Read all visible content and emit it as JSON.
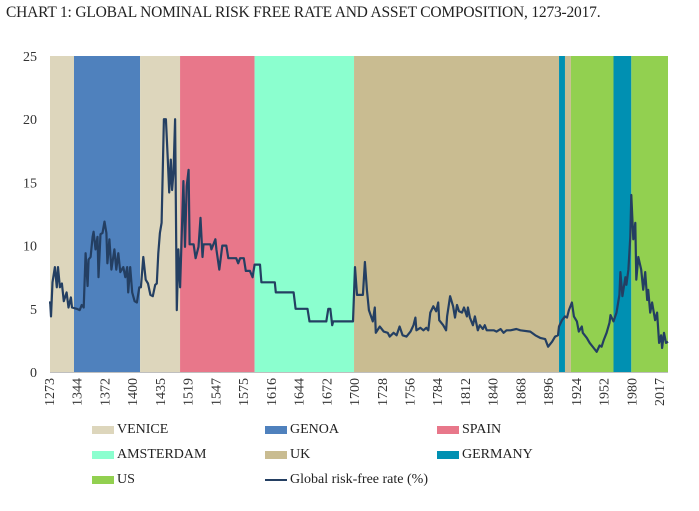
{
  "chart_data": {
    "type": "area+line",
    "title": "CHART 1: GLOBAL NOMINAL RISK FREE RATE AND ASSET COMPOSITION, 1273-2017.",
    "xlabel": "",
    "ylabel": "",
    "ylim": [
      0,
      25
    ],
    "yticks": [
      "0",
      "5",
      "10",
      "15",
      "20",
      "25"
    ],
    "xticks": [
      "1273",
      "1344",
      "1372",
      "1400",
      "1435",
      "1519",
      "1547",
      "1575",
      "1616",
      "1644",
      "1672",
      "1700",
      "1728",
      "1756",
      "1784",
      "1812",
      "1840",
      "1868",
      "1896",
      "1924",
      "1952",
      "1980",
      "2017"
    ],
    "grid": false,
    "legend_position": "bottom",
    "colors": {
      "VENICE": "#DDD6BC",
      "GENOA": "#4F81BD",
      "SPAIN": "#E8778A",
      "AMSTERDAM": "#8BFFCF",
      "UK": "#C9BC91",
      "GERMANY": "#0090B2",
      "US": "#92D050",
      "line": "#243F62"
    },
    "legend": [
      {
        "label": "VENICE",
        "key": "VENICE"
      },
      {
        "label": "GENOA",
        "key": "GENOA"
      },
      {
        "label": "SPAIN",
        "key": "SPAIN"
      },
      {
        "label": "AMSTERDAM",
        "key": "AMSTERDAM"
      },
      {
        "label": "UK",
        "key": "UK"
      },
      {
        "label": "GERMANY",
        "key": "GERMANY"
      },
      {
        "label": "US",
        "key": "US"
      },
      {
        "label": "Global risk-free rate (%)",
        "key": "line"
      }
    ],
    "bands": [
      {
        "asset": "VENICE",
        "from": 1273,
        "to": 1337
      },
      {
        "asset": "GENOA",
        "from": 1337,
        "to": 1410
      },
      {
        "asset": "VENICE",
        "from": 1410,
        "to": 1496
      },
      {
        "asset": "SPAIN",
        "from": 1496,
        "to": 1592
      },
      {
        "asset": "AMSTERDAM",
        "from": 1592,
        "to": 1700
      },
      {
        "asset": "UK",
        "from": 1700,
        "to": 1907
      },
      {
        "asset": "GERMANY",
        "from": 1907,
        "to": 1913
      },
      {
        "asset": "UK",
        "from": 1913,
        "to": 1919
      },
      {
        "asset": "US",
        "from": 1919,
        "to": 1962
      },
      {
        "asset": "GERMANY",
        "from": 1962,
        "to": 1980
      },
      {
        "asset": "US",
        "from": 1980,
        "to": 2017
      }
    ],
    "series": [
      {
        "name": "Global risk-free rate (%)",
        "points": [
          [
            1273,
            5.5
          ],
          [
            1276,
            5.5
          ],
          [
            1278,
            4.4
          ],
          [
            1282,
            7.1
          ],
          [
            1288,
            8.3
          ],
          [
            1293,
            6.7
          ],
          [
            1296,
            8.3
          ],
          [
            1301,
            6.7
          ],
          [
            1306,
            7.0
          ],
          [
            1311,
            5.6
          ],
          [
            1318,
            6.3
          ],
          [
            1323,
            5.1
          ],
          [
            1329,
            5.9
          ],
          [
            1332,
            5.1
          ],
          [
            1344,
            5.0
          ],
          [
            1347,
            4.9
          ],
          [
            1349,
            5.3
          ],
          [
            1351,
            5.1
          ],
          [
            1353,
            9.4
          ],
          [
            1355,
            6.8
          ],
          [
            1356,
            8.9
          ],
          [
            1358,
            9.1
          ],
          [
            1360,
            10.7
          ],
          [
            1361,
            11.1
          ],
          [
            1363,
            9.7
          ],
          [
            1365,
            10.7
          ],
          [
            1366,
            7.5
          ],
          [
            1368,
            10.9
          ],
          [
            1370,
            11.0
          ],
          [
            1372,
            11.9
          ],
          [
            1374,
            11.0
          ],
          [
            1375,
            8.6
          ],
          [
            1377,
            10.5
          ],
          [
            1379,
            8.1
          ],
          [
            1382,
            9.7
          ],
          [
            1384,
            8.1
          ],
          [
            1386,
            9.4
          ],
          [
            1388,
            7.9
          ],
          [
            1391,
            8.3
          ],
          [
            1393,
            7.5
          ],
          [
            1395,
            8.3
          ],
          [
            1396,
            6.3
          ],
          [
            1398,
            8.3
          ],
          [
            1400,
            6.3
          ],
          [
            1403,
            5.6
          ],
          [
            1406,
            5.5
          ],
          [
            1409,
            6.7
          ],
          [
            1411,
            6.7
          ],
          [
            1414,
            9.1
          ],
          [
            1417,
            7.3
          ],
          [
            1420,
            7.0
          ],
          [
            1423,
            6.1
          ],
          [
            1426,
            6.0
          ],
          [
            1429,
            6.9
          ],
          [
            1431,
            7.0
          ],
          [
            1433,
            9.4
          ],
          [
            1435,
            11.0
          ],
          [
            1440,
            11.8
          ],
          [
            1447,
            20.0
          ],
          [
            1453,
            20.0
          ],
          [
            1459,
            16.8
          ],
          [
            1463,
            14.2
          ],
          [
            1468,
            16.8
          ],
          [
            1472,
            14.4
          ],
          [
            1476,
            15.8
          ],
          [
            1481,
            20.0
          ],
          [
            1486,
            4.9
          ],
          [
            1491,
            9.7
          ],
          [
            1496,
            6.7
          ],
          [
            1506,
            15.1
          ],
          [
            1511,
            9.9
          ],
          [
            1516,
            14.7
          ],
          [
            1520,
            16.0
          ],
          [
            1521,
            10.1
          ],
          [
            1525,
            10.1
          ],
          [
            1527,
            9.0
          ],
          [
            1530,
            9.9
          ],
          [
            1532,
            12.2
          ],
          [
            1534,
            9.1
          ],
          [
            1535,
            10.1
          ],
          [
            1542,
            10.1
          ],
          [
            1543,
            9.7
          ],
          [
            1547,
            10.5
          ],
          [
            1548,
            9.7
          ],
          [
            1551,
            8.1
          ],
          [
            1554,
            10.0
          ],
          [
            1558,
            10.0
          ],
          [
            1560,
            9.0
          ],
          [
            1568,
            9.0
          ],
          [
            1570,
            8.6
          ],
          [
            1572,
            9.0
          ],
          [
            1576,
            9.0
          ],
          [
            1579,
            8.0
          ],
          [
            1585,
            8.0
          ],
          [
            1589,
            7.5
          ],
          [
            1592,
            8.5
          ],
          [
            1600,
            8.5
          ],
          [
            1602,
            7.1
          ],
          [
            1620,
            7.1
          ],
          [
            1621,
            6.3
          ],
          [
            1639,
            6.3
          ],
          [
            1641,
            5.0
          ],
          [
            1653,
            5.0
          ],
          [
            1655,
            4.0
          ],
          [
            1672,
            4.0
          ],
          [
            1674,
            5.0
          ],
          [
            1676,
            5.0
          ],
          [
            1678,
            3.7
          ],
          [
            1679,
            4.0
          ],
          [
            1699,
            4.0
          ],
          [
            1701,
            8.3
          ],
          [
            1703,
            6.1
          ],
          [
            1709,
            6.1
          ],
          [
            1711,
            8.7
          ],
          [
            1713,
            6.5
          ],
          [
            1715,
            4.9
          ],
          [
            1719,
            4.0
          ],
          [
            1721,
            5.1
          ],
          [
            1722,
            3.1
          ],
          [
            1726,
            3.6
          ],
          [
            1730,
            3.2
          ],
          [
            1734,
            3.1
          ],
          [
            1736,
            2.8
          ],
          [
            1740,
            3.1
          ],
          [
            1743,
            2.9
          ],
          [
            1746,
            3.6
          ],
          [
            1749,
            2.9
          ],
          [
            1753,
            2.8
          ],
          [
            1757,
            3.2
          ],
          [
            1760,
            3.7
          ],
          [
            1762,
            4.3
          ],
          [
            1763,
            3.3
          ],
          [
            1767,
            3.5
          ],
          [
            1770,
            3.3
          ],
          [
            1773,
            3.5
          ],
          [
            1775,
            3.3
          ],
          [
            1777,
            4.7
          ],
          [
            1780,
            5.2
          ],
          [
            1783,
            4.8
          ],
          [
            1785,
            5.5
          ],
          [
            1786,
            4.1
          ],
          [
            1790,
            3.7
          ],
          [
            1793,
            3.3
          ],
          [
            1794,
            4.4
          ],
          [
            1797,
            6.0
          ],
          [
            1800,
            5.2
          ],
          [
            1802,
            4.3
          ],
          [
            1804,
            5.3
          ],
          [
            1806,
            4.8
          ],
          [
            1809,
            4.7
          ],
          [
            1811,
            5.1
          ],
          [
            1814,
            4.4
          ],
          [
            1815,
            5.1
          ],
          [
            1817,
            4.3
          ],
          [
            1820,
            3.7
          ],
          [
            1822,
            4.4
          ],
          [
            1825,
            3.3
          ],
          [
            1827,
            3.7
          ],
          [
            1830,
            3.4
          ],
          [
            1832,
            3.7
          ],
          [
            1834,
            3.3
          ],
          [
            1841,
            3.3
          ],
          [
            1844,
            3.2
          ],
          [
            1848,
            3.4
          ],
          [
            1851,
            3.1
          ],
          [
            1854,
            3.3
          ],
          [
            1858,
            3.3
          ],
          [
            1864,
            3.4
          ],
          [
            1868,
            3.3
          ],
          [
            1878,
            3.2
          ],
          [
            1883,
            2.9
          ],
          [
            1888,
            2.7
          ],
          [
            1893,
            2.6
          ],
          [
            1896,
            2.0
          ],
          [
            1900,
            2.4
          ],
          [
            1903,
            2.8
          ],
          [
            1906,
            2.9
          ],
          [
            1907,
            3.6
          ],
          [
            1910,
            4.1
          ],
          [
            1913,
            4.4
          ],
          [
            1915,
            4.3
          ],
          [
            1917,
            4.9
          ],
          [
            1920,
            5.5
          ],
          [
            1922,
            4.4
          ],
          [
            1925,
            4.0
          ],
          [
            1927,
            3.2
          ],
          [
            1930,
            3.6
          ],
          [
            1931,
            3.1
          ],
          [
            1935,
            2.7
          ],
          [
            1938,
            2.3
          ],
          [
            1942,
            1.9
          ],
          [
            1945,
            1.6
          ],
          [
            1948,
            2.1
          ],
          [
            1950,
            2.0
          ],
          [
            1952,
            2.5
          ],
          [
            1955,
            3.1
          ],
          [
            1958,
            3.9
          ],
          [
            1959,
            4.5
          ],
          [
            1962,
            4.0
          ],
          [
            1965,
            4.7
          ],
          [
            1968,
            6.1
          ],
          [
            1969,
            7.9
          ],
          [
            1971,
            6.0
          ],
          [
            1974,
            7.5
          ],
          [
            1975,
            6.9
          ],
          [
            1977,
            8.1
          ],
          [
            1979,
            10.7
          ],
          [
            1980,
            14.0
          ],
          [
            1982,
            10.5
          ],
          [
            1984,
            11.8
          ],
          [
            1985,
            7.3
          ],
          [
            1987,
            9.1
          ],
          [
            1990,
            8.1
          ],
          [
            1992,
            6.5
          ],
          [
            1994,
            7.9
          ],
          [
            1996,
            5.7
          ],
          [
            1997,
            6.5
          ],
          [
            1999,
            4.7
          ],
          [
            2001,
            5.5
          ],
          [
            2004,
            4.1
          ],
          [
            2006,
            4.7
          ],
          [
            2008,
            2.3
          ],
          [
            2010,
            2.9
          ],
          [
            2011,
            1.9
          ],
          [
            2013,
            3.1
          ],
          [
            2015,
            2.3
          ],
          [
            2017,
            2.4
          ]
        ]
      }
    ]
  }
}
